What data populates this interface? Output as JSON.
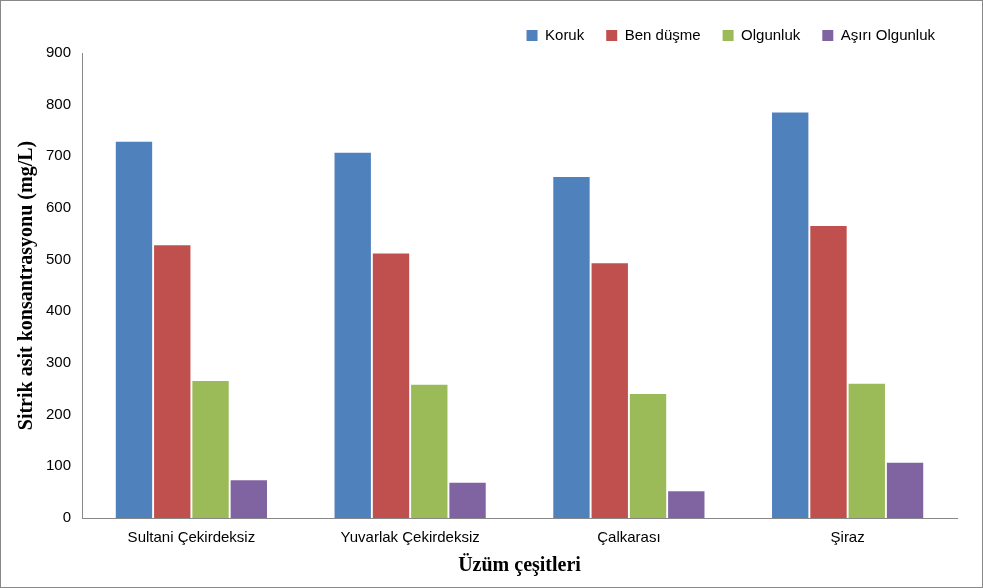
{
  "chart_data": {
    "type": "bar",
    "x_label": "Üzüm çeşitleri",
    "y_label": "Sitrik asit konsantrasyonu (mg/L)",
    "categories": [
      "Sultani Çekirdeksiz",
      "Yuvarlak Çekirdeksiz",
      "Çalkarası",
      "Şiraz"
    ],
    "series": [
      {
        "name": "Koruk",
        "color": "#4f81bd",
        "values": [
          728,
          707,
          660,
          785
        ]
      },
      {
        "name": "Ben düşme",
        "color": "#c0504d",
        "values": [
          528,
          512,
          493,
          565
        ]
      },
      {
        "name": "Olgunluk",
        "color": "#9bbb59",
        "values": [
          265,
          258,
          240,
          260
        ]
      },
      {
        "name": "Aşırı Olgunluk",
        "color": "#8064a2",
        "values": [
          73,
          68,
          52,
          107
        ]
      }
    ],
    "ylim": [
      0,
      900
    ],
    "yticks": [
      0,
      100,
      200,
      300,
      400,
      500,
      600,
      700,
      800,
      900
    ],
    "grid": false,
    "legend": "top"
  }
}
